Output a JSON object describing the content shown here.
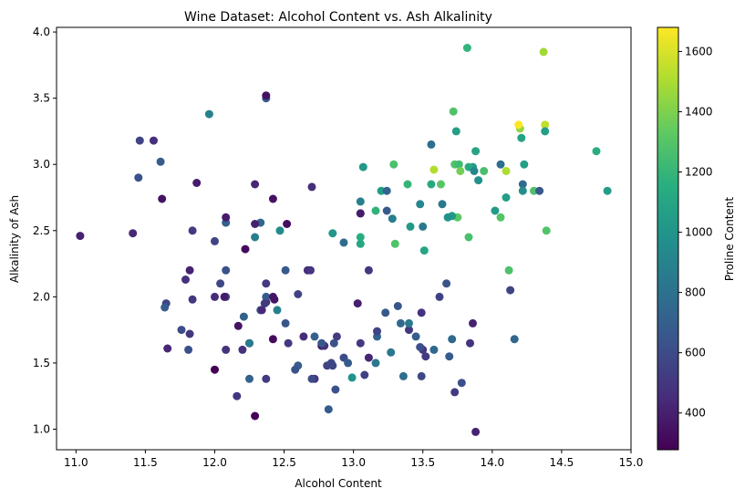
{
  "chart_data": {
    "type": "scatter",
    "title": "Wine Dataset: Alcohol Content vs. Ash Alkalinity",
    "xlabel": "Alcohol Content",
    "ylabel": "Alkalinity of Ash",
    "xlim": [
      10.86,
      15.0
    ],
    "ylim": [
      0.845,
      4.035
    ],
    "xticks": [
      "11.0",
      "11.5",
      "12.0",
      "12.5",
      "13.0",
      "13.5",
      "14.0",
      "14.5",
      "15.0"
    ],
    "xtick_values": [
      11.0,
      11.5,
      12.0,
      12.5,
      13.0,
      13.5,
      14.0,
      14.5,
      15.0
    ],
    "yticks": [
      "1.0",
      "1.5",
      "2.0",
      "2.5",
      "3.0",
      "3.5",
      "4.0"
    ],
    "ytick_values": [
      1.0,
      1.5,
      2.0,
      2.5,
      3.0,
      3.5,
      4.0
    ],
    "colorbar": {
      "label": "Proline Content",
      "colormap": "viridis",
      "range": [
        278,
        1680
      ],
      "ticks": [
        "400",
        "600",
        "800",
        "1000",
        "1200",
        "1400",
        "1600"
      ],
      "tick_values": [
        400,
        600,
        800,
        1000,
        1200,
        1400,
        1600
      ]
    },
    "grid": false,
    "points": [
      [
        14.23,
        3.0,
        1065
      ],
      [
        13.2,
        2.8,
        1050
      ],
      [
        13.16,
        2.65,
        1185
      ],
      [
        14.37,
        3.85,
        1480
      ],
      [
        13.24,
        2.8,
        735
      ],
      [
        14.2,
        3.27,
        1450
      ],
      [
        14.39,
        2.5,
        1290
      ],
      [
        14.06,
        2.6,
        1295
      ],
      [
        14.83,
        2.8,
        1045
      ],
      [
        13.86,
        2.98,
        1045
      ],
      [
        14.1,
        2.95,
        1510
      ],
      [
        14.12,
        2.2,
        1280
      ],
      [
        13.75,
        2.6,
        1320
      ],
      [
        14.75,
        3.1,
        1150
      ],
      [
        14.38,
        3.3,
        1547
      ],
      [
        13.63,
        2.85,
        1310
      ],
      [
        14.3,
        2.8,
        1280
      ],
      [
        13.83,
        2.98,
        1130
      ],
      [
        14.19,
        3.3,
        1680
      ],
      [
        13.64,
        2.7,
        845
      ],
      [
        14.06,
        3.0,
        780
      ],
      [
        12.93,
        2.41,
        770
      ],
      [
        13.71,
        2.61,
        1035
      ],
      [
        12.85,
        2.48,
        1015
      ],
      [
        13.5,
        2.53,
        845
      ],
      [
        13.05,
        2.63,
        830
      ],
      [
        13.39,
        2.85,
        1195
      ],
      [
        13.3,
        2.4,
        1285
      ],
      [
        13.87,
        2.95,
        915
      ],
      [
        14.02,
        2.65,
        1035
      ],
      [
        13.73,
        3.0,
        1285
      ],
      [
        13.58,
        2.96,
        1515
      ],
      [
        13.68,
        2.6,
        990
      ],
      [
        13.76,
        3.0,
        1235
      ],
      [
        13.51,
        2.35,
        1095
      ],
      [
        13.48,
        2.7,
        920
      ],
      [
        13.28,
        2.59,
        880
      ],
      [
        13.05,
        2.4,
        1105
      ],
      [
        13.07,
        2.98,
        1020
      ],
      [
        14.22,
        2.85,
        760
      ],
      [
        13.56,
        3.15,
        795
      ],
      [
        13.41,
        2.53,
        1035
      ],
      [
        13.88,
        3.1,
        1095
      ],
      [
        13.24,
        2.65,
        680
      ],
      [
        13.05,
        2.72,
        885
      ],
      [
        14.21,
        3.2,
        1080
      ],
      [
        14.38,
        3.25,
        1065
      ],
      [
        13.9,
        2.88,
        985
      ],
      [
        14.1,
        2.75,
        1060
      ],
      [
        13.94,
        2.95,
        1260
      ],
      [
        13.05,
        2.45,
        1150
      ],
      [
        13.83,
        2.45,
        1265
      ],
      [
        13.82,
        3.88,
        1190
      ],
      [
        13.77,
        2.95,
        1375
      ],
      [
        13.74,
        3.25,
        1060
      ],
      [
        13.56,
        2.85,
        1120
      ],
      [
        14.22,
        2.8,
        970
      ],
      [
        13.29,
        3.0,
        1270
      ],
      [
        13.72,
        3.4,
        1285
      ],
      [
        12.37,
        1.38,
        520
      ],
      [
        12.33,
        1.9,
        680
      ],
      [
        12.64,
        1.7,
        450
      ],
      [
        13.67,
        2.1,
        630
      ],
      [
        12.37,
        1.96,
        420
      ],
      [
        12.17,
        1.78,
        355
      ],
      [
        12.37,
        2.0,
        678
      ],
      [
        13.11,
        2.2,
        502
      ],
      [
        12.37,
        2.1,
        510
      ],
      [
        13.34,
        1.8,
        750
      ],
      [
        12.21,
        1.85,
        718
      ],
      [
        12.29,
        2.45,
        870
      ],
      [
        13.86,
        1.8,
        410
      ],
      [
        13.49,
        1.88,
        472
      ],
      [
        12.99,
        1.39,
        985
      ],
      [
        11.96,
        3.38,
        886
      ],
      [
        11.66,
        1.61,
        428
      ],
      [
        13.03,
        1.95,
        392
      ],
      [
        11.84,
        1.98,
        500
      ],
      [
        12.33,
        2.56,
        750
      ],
      [
        12.7,
        2.83,
        463
      ],
      [
        12.0,
        1.45,
        278
      ],
      [
        12.72,
        1.7,
        714
      ],
      [
        12.08,
        2.2,
        630
      ],
      [
        13.05,
        1.65,
        515
      ],
      [
        11.84,
        2.5,
        520
      ],
      [
        12.67,
        2.2,
        450
      ],
      [
        12.16,
        1.25,
        495
      ],
      [
        11.65,
        1.95,
        562
      ],
      [
        11.64,
        1.92,
        680
      ],
      [
        12.08,
        2.0,
        625
      ],
      [
        12.08,
        1.6,
        480
      ],
      [
        12.0,
        2.0,
        450
      ],
      [
        12.69,
        2.2,
        495
      ],
      [
        12.29,
        1.1,
        290
      ],
      [
        11.62,
        2.74,
        345
      ],
      [
        12.47,
        2.5,
        937
      ],
      [
        11.81,
        1.6,
        625
      ],
      [
        12.29,
        2.85,
        428
      ],
      [
        12.37,
        3.5,
        660
      ],
      [
        12.29,
        2.55,
        406
      ],
      [
        12.08,
        2.56,
        710
      ],
      [
        12.6,
        2.02,
        562
      ],
      [
        12.34,
        1.9,
        438
      ],
      [
        11.82,
        2.2,
        415
      ],
      [
        12.51,
        2.2,
        672
      ],
      [
        12.42,
        1.68,
        315
      ],
      [
        12.25,
        1.65,
        510
      ],
      [
        12.72,
        1.38,
        488
      ],
      [
        12.22,
        2.36,
        312
      ],
      [
        11.61,
        3.02,
        680
      ],
      [
        11.46,
        3.18,
        562
      ],
      [
        12.52,
        2.55,
        325
      ],
      [
        11.76,
        1.75,
        607
      ],
      [
        11.41,
        2.48,
        434
      ],
      [
        12.08,
        2.6,
        385
      ],
      [
        11.03,
        2.46,
        407
      ],
      [
        11.82,
        1.72,
        495
      ],
      [
        12.42,
        2.74,
        345
      ],
      [
        12.77,
        1.63,
        372
      ],
      [
        12.0,
        2.42,
        564
      ],
      [
        11.45,
        2.9,
        625
      ],
      [
        11.56,
        3.18,
        465
      ],
      [
        12.42,
        2.0,
        365
      ],
      [
        13.05,
        2.63,
        380
      ],
      [
        11.87,
        2.86,
        380
      ],
      [
        12.07,
        2.0,
        378
      ],
      [
        12.43,
        1.98,
        352
      ],
      [
        11.79,
        2.13,
        466
      ],
      [
        12.37,
        3.52,
        342
      ],
      [
        12.04,
        2.1,
        580
      ],
      [
        12.86,
        1.65,
        630
      ],
      [
        12.88,
        1.7,
        530
      ],
      [
        12.81,
        1.48,
        560
      ],
      [
        12.7,
        1.38,
        600
      ],
      [
        12.51,
        1.8,
        650
      ],
      [
        12.6,
        1.48,
        695
      ],
      [
        12.25,
        1.38,
        720
      ],
      [
        12.53,
        1.65,
        515
      ],
      [
        13.49,
        1.4,
        580
      ],
      [
        12.84,
        1.5,
        590
      ],
      [
        12.93,
        1.54,
        600
      ],
      [
        13.36,
        1.4,
        780
      ],
      [
        13.52,
        1.55,
        520
      ],
      [
        13.62,
        2.0,
        550
      ],
      [
        12.25,
        1.65,
        855
      ],
      [
        13.16,
        1.5,
        830
      ],
      [
        13.88,
        0.98,
        415
      ],
      [
        12.87,
        1.3,
        625
      ],
      [
        13.32,
        1.93,
        650
      ],
      [
        13.08,
        1.41,
        550
      ],
      [
        13.5,
        1.6,
        500
      ],
      [
        12.79,
        1.63,
        480
      ],
      [
        13.11,
        1.54,
        425
      ],
      [
        13.23,
        1.88,
        675
      ],
      [
        12.58,
        1.45,
        640
      ],
      [
        13.17,
        1.7,
        725
      ],
      [
        13.84,
        1.65,
        480
      ],
      [
        12.45,
        1.9,
        880
      ],
      [
        14.34,
        2.8,
        660
      ],
      [
        13.48,
        1.62,
        620
      ],
      [
        12.36,
        1.95,
        520
      ],
      [
        13.69,
        1.55,
        680
      ],
      [
        12.85,
        1.48,
        570
      ],
      [
        12.96,
        1.5,
        675
      ],
      [
        13.78,
        1.35,
        615
      ],
      [
        13.73,
        1.28,
        520
      ],
      [
        13.45,
        1.7,
        695
      ],
      [
        12.82,
        1.15,
        685
      ],
      [
        13.58,
        1.6,
        750
      ],
      [
        13.4,
        1.75,
        510
      ],
      [
        12.2,
        1.6,
        470
      ],
      [
        12.77,
        1.65,
        660
      ],
      [
        14.16,
        1.68,
        740
      ],
      [
        13.71,
        1.68,
        750
      ],
      [
        13.4,
        1.8,
        835
      ],
      [
        13.27,
        1.58,
        840
      ],
      [
        13.17,
        1.74,
        560
      ],
      [
        14.13,
        2.05,
        560
      ]
    ]
  }
}
